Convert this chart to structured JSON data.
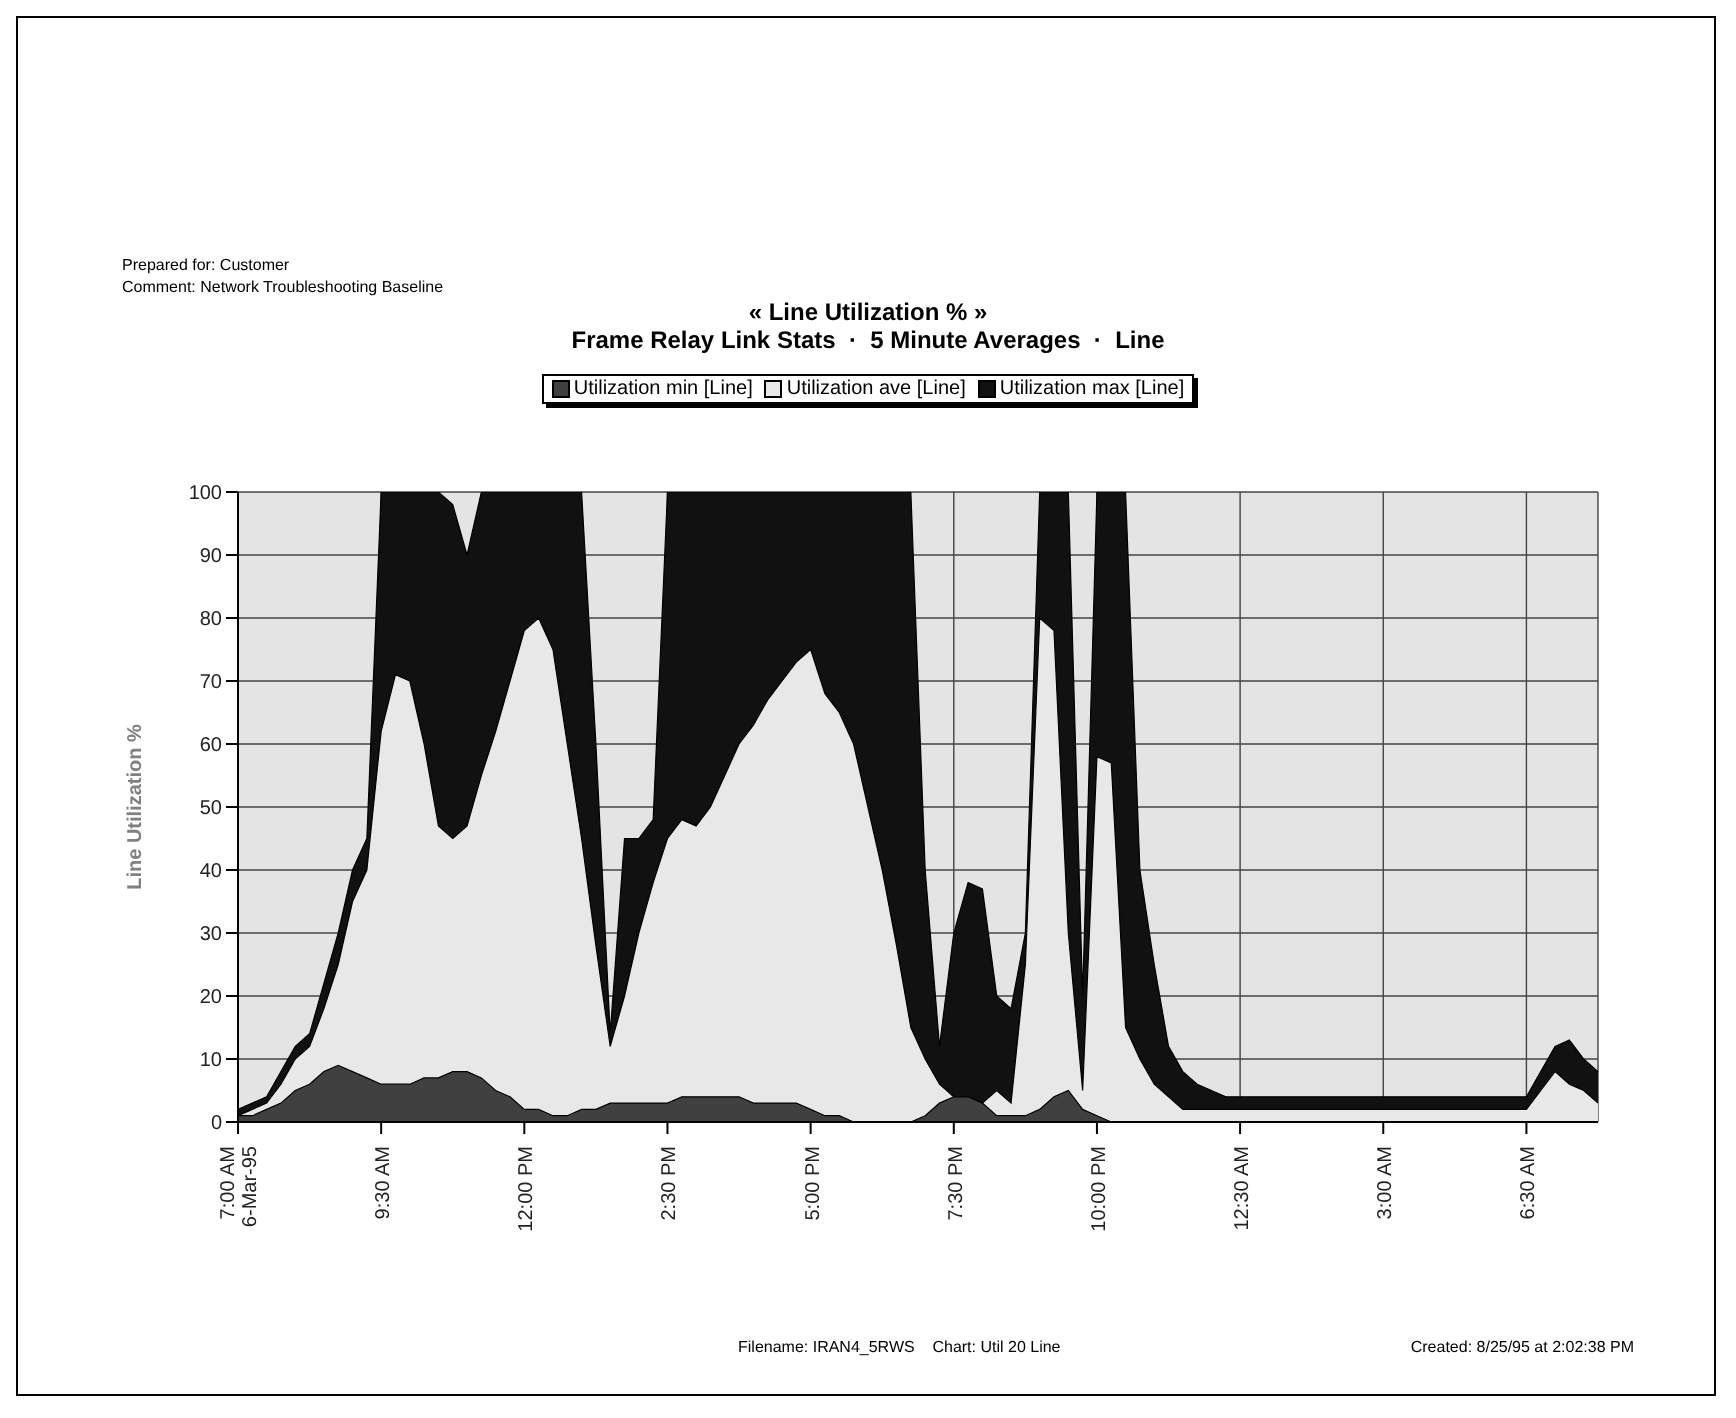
{
  "chart_data": {
    "type": "area",
    "title": "« Line Utilization % »",
    "subtitle": "Frame Relay Link Stats  ·  5 Minute Averages  ·  Line",
    "ylabel": "Line Utilization %",
    "annotations": [
      "Prepared for: Customer",
      "Comment: Network Troubleshooting Baseline",
      "Filename: IRAN4_5RWS    Chart: Util 20 Line",
      "Created: 8/25/95 at 2:02:38 PM"
    ],
    "categories": [
      "7:00 AM\n6-Mar-95",
      null,
      null,
      null,
      null,
      null,
      null,
      null,
      null,
      null,
      "9:30 AM",
      null,
      null,
      null,
      null,
      null,
      null,
      null,
      null,
      null,
      "12:00 PM",
      null,
      null,
      null,
      null,
      null,
      null,
      null,
      null,
      null,
      "2:30 PM",
      null,
      null,
      null,
      null,
      null,
      null,
      null,
      null,
      null,
      "5:00 PM",
      null,
      null,
      null,
      null,
      null,
      null,
      null,
      null,
      null,
      "7:30 PM",
      null,
      null,
      null,
      null,
      null,
      null,
      null,
      null,
      null,
      "10:00 PM",
      null,
      null,
      null,
      null,
      null,
      null,
      null,
      null,
      null,
      "12:30 AM",
      null,
      null,
      null,
      null,
      null,
      null,
      null,
      null,
      null,
      "3:00 AM",
      null,
      null,
      null,
      null,
      null,
      null,
      null,
      null,
      null,
      "6:30 AM",
      null,
      null,
      null,
      null,
      null
    ],
    "series": [
      {
        "name": "Utilization min [Line]",
        "color": "#404040",
        "values": [
          1,
          1,
          2,
          3,
          5,
          6,
          8,
          9,
          8,
          7,
          6,
          6,
          6,
          7,
          7,
          8,
          8,
          7,
          5,
          4,
          2,
          2,
          1,
          1,
          2,
          2,
          3,
          3,
          3,
          3,
          3,
          4,
          4,
          4,
          4,
          4,
          3,
          3,
          3,
          3,
          2,
          1,
          1,
          0,
          0,
          0,
          0,
          0,
          1,
          3,
          4,
          4,
          3,
          1,
          1,
          1,
          2,
          4,
          5,
          2,
          1,
          0,
          0,
          0,
          0,
          0,
          0,
          0,
          0,
          0,
          0,
          0,
          0,
          0,
          0,
          0,
          0,
          0,
          0,
          0,
          0,
          0,
          0,
          0,
          0,
          0,
          0,
          0,
          0,
          0,
          0,
          0,
          0,
          0,
          0,
          0
        ]
      },
      {
        "name": "Utilization ave [Line]",
        "color": "#e8e8e8",
        "values": [
          1,
          2,
          3,
          6,
          10,
          12,
          18,
          25,
          35,
          40,
          62,
          71,
          70,
          60,
          47,
          45,
          47,
          55,
          62,
          70,
          78,
          80,
          75,
          60,
          45,
          28,
          12,
          20,
          30,
          38,
          45,
          48,
          47,
          50,
          55,
          60,
          63,
          67,
          70,
          73,
          75,
          68,
          65,
          60,
          50,
          40,
          28,
          15,
          10,
          6,
          4,
          4,
          3,
          5,
          3,
          25,
          80,
          78,
          30,
          5,
          58,
          57,
          15,
          10,
          6,
          4,
          2,
          2,
          2,
          2,
          2,
          2,
          2,
          2,
          2,
          2,
          2,
          2,
          2,
          2,
          2,
          2,
          2,
          2,
          2,
          2,
          2,
          2,
          2,
          2,
          2,
          5,
          8,
          6,
          5,
          3
        ]
      },
      {
        "name": "Utilization max [Line]",
        "color": "#111111",
        "values": [
          2,
          3,
          4,
          8,
          12,
          14,
          22,
          30,
          40,
          45,
          100,
          100,
          100,
          100,
          100,
          98,
          90,
          100,
          100,
          100,
          100,
          100,
          100,
          100,
          100,
          60,
          14,
          45,
          45,
          48,
          100,
          100,
          100,
          100,
          100,
          100,
          100,
          100,
          100,
          100,
          100,
          100,
          100,
          100,
          100,
          100,
          100,
          100,
          40,
          12,
          30,
          38,
          37,
          20,
          18,
          30,
          100,
          100,
          100,
          20,
          100,
          100,
          100,
          40,
          25,
          12,
          8,
          6,
          5,
          4,
          4,
          4,
          4,
          4,
          4,
          4,
          4,
          4,
          4,
          4,
          4,
          4,
          4,
          4,
          4,
          4,
          4,
          4,
          4,
          4,
          4,
          8,
          12,
          13,
          10,
          8
        ]
      }
    ],
    "ylim": [
      0,
      100
    ],
    "yticks": [
      0,
      10,
      20,
      30,
      40,
      50,
      60,
      70,
      80,
      90,
      100
    ],
    "grid": true,
    "legend": "top"
  }
}
